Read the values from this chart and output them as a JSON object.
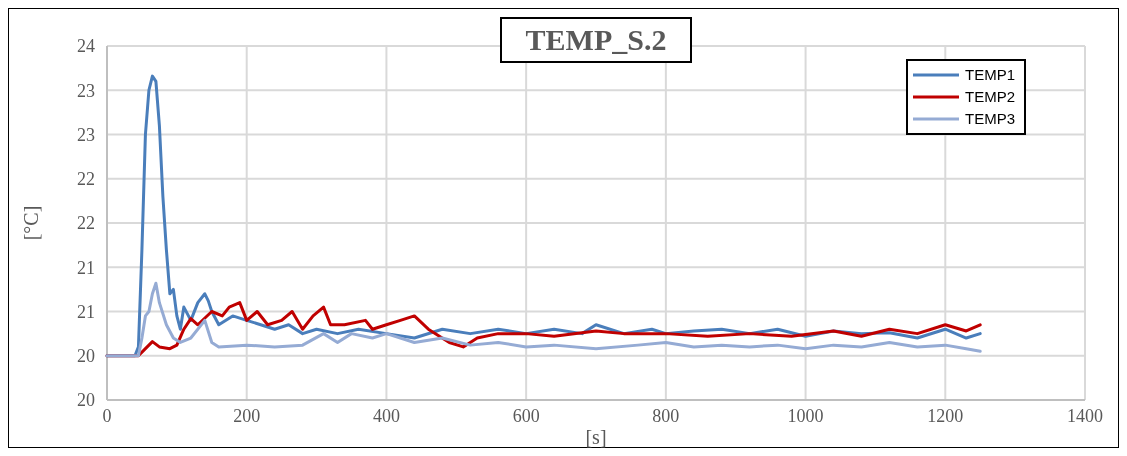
{
  "chart_data": {
    "type": "line",
    "title": "TEMP_S.2",
    "xlabel": "[s]",
    "ylabel": "[°C]",
    "xlim": [
      0,
      1400
    ],
    "xticks": [
      0,
      200,
      400,
      600,
      800,
      1000,
      1200,
      1400
    ],
    "ylim": [
      19.5,
      23.5
    ],
    "yticks": [
      {
        "value": 19.5,
        "label": "20"
      },
      {
        "value": 20,
        "label": "20"
      },
      {
        "value": 20.5,
        "label": "21"
      },
      {
        "value": 21,
        "label": "21"
      },
      {
        "value": 21.5,
        "label": "22"
      },
      {
        "value": 22,
        "label": "22"
      },
      {
        "value": 22.5,
        "label": "23"
      },
      {
        "value": 23,
        "label": "23"
      },
      {
        "value": 23.5,
        "label": "24"
      }
    ],
    "grid": true,
    "legend": "top right",
    "marker": "none",
    "line_style": "solid",
    "series": [
      {
        "name": "TEMP1",
        "color": "#4a7ebb",
        "x": [
          0,
          40,
          45,
          50,
          55,
          60,
          65,
          70,
          75,
          80,
          85,
          90,
          95,
          100,
          105,
          110,
          120,
          130,
          140,
          145,
          150,
          160,
          180,
          200,
          220,
          240,
          260,
          280,
          300,
          330,
          360,
          400,
          440,
          480,
          520,
          560,
          600,
          640,
          680,
          700,
          740,
          780,
          800,
          840,
          880,
          920,
          960,
          1000,
          1040,
          1080,
          1120,
          1160,
          1200,
          1230,
          1250
        ],
        "values": [
          20,
          20,
          20.1,
          21.2,
          22.5,
          23.0,
          23.16,
          23.1,
          22.6,
          21.8,
          21.2,
          20.7,
          20.75,
          20.45,
          20.3,
          20.55,
          20.4,
          20.6,
          20.7,
          20.62,
          20.5,
          20.35,
          20.45,
          20.4,
          20.35,
          20.3,
          20.35,
          20.25,
          20.3,
          20.25,
          20.3,
          20.25,
          20.2,
          20.3,
          20.25,
          20.3,
          20.25,
          20.3,
          20.25,
          20.35,
          20.25,
          20.3,
          20.25,
          20.28,
          20.3,
          20.25,
          20.3,
          20.22,
          20.28,
          20.25,
          20.26,
          20.2,
          20.3,
          20.2,
          20.25
        ]
      },
      {
        "name": "TEMP2",
        "color": "#c00000",
        "x": [
          0,
          45,
          55,
          65,
          75,
          90,
          100,
          110,
          120,
          130,
          150,
          165,
          175,
          190,
          200,
          215,
          230,
          250,
          265,
          280,
          295,
          310,
          320,
          340,
          370,
          380,
          400,
          420,
          440,
          460,
          490,
          510,
          530,
          560,
          600,
          640,
          700,
          740,
          800,
          860,
          920,
          980,
          1040,
          1080,
          1120,
          1160,
          1200,
          1230,
          1250
        ],
        "values": [
          20,
          20,
          20.08,
          20.16,
          20.1,
          20.08,
          20.12,
          20.3,
          20.42,
          20.35,
          20.5,
          20.45,
          20.55,
          20.6,
          20.4,
          20.5,
          20.35,
          20.4,
          20.5,
          20.3,
          20.45,
          20.55,
          20.35,
          20.35,
          20.4,
          20.3,
          20.35,
          20.4,
          20.45,
          20.3,
          20.15,
          20.1,
          20.2,
          20.25,
          20.25,
          20.22,
          20.28,
          20.25,
          20.25,
          20.22,
          20.25,
          20.22,
          20.28,
          20.22,
          20.3,
          20.25,
          20.35,
          20.28,
          20.35
        ]
      },
      {
        "name": "TEMP3",
        "color": "#95abd4",
        "x": [
          0,
          45,
          50,
          55,
          60,
          65,
          70,
          75,
          85,
          95,
          105,
          120,
          140,
          150,
          160,
          200,
          240,
          280,
          310,
          330,
          350,
          380,
          400,
          440,
          480,
          520,
          560,
          600,
          640,
          700,
          760,
          800,
          840,
          880,
          920,
          960,
          1000,
          1040,
          1080,
          1120,
          1160,
          1200,
          1230,
          1250
        ],
        "values": [
          20,
          20,
          20.2,
          20.45,
          20.5,
          20.7,
          20.82,
          20.6,
          20.35,
          20.2,
          20.15,
          20.2,
          20.4,
          20.15,
          20.1,
          20.12,
          20.1,
          20.12,
          20.25,
          20.15,
          20.25,
          20.2,
          20.25,
          20.15,
          20.2,
          20.12,
          20.15,
          20.1,
          20.12,
          20.08,
          20.12,
          20.15,
          20.1,
          20.12,
          20.1,
          20.12,
          20.08,
          20.12,
          20.1,
          20.15,
          20.1,
          20.12,
          20.08,
          20.05
        ]
      }
    ]
  }
}
